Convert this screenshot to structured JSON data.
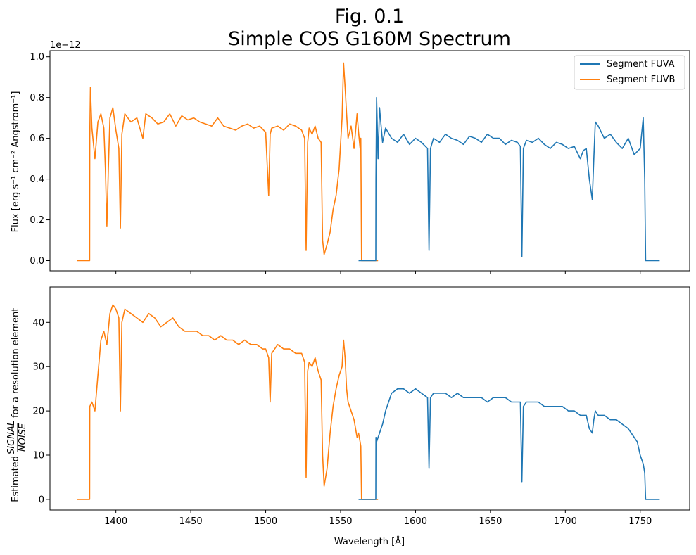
{
  "figure": {
    "title_line1": "Fig. 0.1",
    "title_line2": "Simple COS G160M Spectrum",
    "xlabel": "Wavelength [Å]",
    "colors": {
      "FUVA": "#1f77b4",
      "FUVB": "#ff7f0e"
    }
  },
  "chart_data": [
    {
      "type": "line",
      "name": "flux",
      "ylabel": "Flux [erg s⁻¹ cm⁻² Angstrom⁻¹]",
      "offset_text": "1e−12",
      "xlim": [
        1356,
        1783
      ],
      "ylim": [
        -0.05,
        1.03
      ],
      "xticks": [
        1400,
        1450,
        1500,
        1550,
        1600,
        1650,
        1700,
        1750
      ],
      "yticks": [
        0.0,
        0.2,
        0.4,
        0.6,
        0.8,
        1.0
      ],
      "ytick_labels": [
        "0.0",
        "0.2",
        "0.4",
        "0.6",
        "0.8",
        "1.0"
      ],
      "xtick_labels_visible": false,
      "legend": {
        "location": "upper right",
        "entries": [
          "Segment FUVA",
          "Segment FUVB"
        ]
      },
      "series": [
        {
          "name": "Segment FUVB",
          "color": "#ff7f0e",
          "x": [
            1374,
            1382.5,
            1382.6,
            1383,
            1384,
            1386,
            1388,
            1390,
            1392,
            1393,
            1394,
            1395,
            1396,
            1398,
            1400,
            1402,
            1403,
            1404,
            1406,
            1410,
            1414,
            1418,
            1420,
            1424,
            1428,
            1432,
            1436,
            1440,
            1444,
            1448,
            1452,
            1456,
            1460,
            1464,
            1468,
            1472,
            1476,
            1480,
            1484,
            1488,
            1492,
            1496,
            1500,
            1502,
            1503,
            1504,
            1508,
            1512,
            1516,
            1520,
            1524,
            1526,
            1527,
            1528,
            1529,
            1531,
            1533,
            1535,
            1537,
            1538,
            1539,
            1541,
            1543,
            1545,
            1547,
            1549,
            1551,
            1552,
            1553,
            1554,
            1555,
            1557,
            1559,
            1561,
            1562,
            1563,
            1563.5,
            1564,
            1575
          ],
          "y": [
            0.0,
            0.0,
            0.6,
            0.85,
            0.65,
            0.5,
            0.68,
            0.72,
            0.65,
            0.45,
            0.17,
            0.45,
            0.7,
            0.75,
            0.64,
            0.55,
            0.16,
            0.62,
            0.72,
            0.68,
            0.7,
            0.6,
            0.72,
            0.7,
            0.67,
            0.68,
            0.72,
            0.66,
            0.71,
            0.69,
            0.7,
            0.68,
            0.67,
            0.66,
            0.7,
            0.66,
            0.65,
            0.64,
            0.66,
            0.67,
            0.65,
            0.66,
            0.63,
            0.32,
            0.62,
            0.65,
            0.66,
            0.64,
            0.67,
            0.66,
            0.64,
            0.6,
            0.05,
            0.58,
            0.65,
            0.62,
            0.66,
            0.6,
            0.58,
            0.1,
            0.03,
            0.08,
            0.14,
            0.25,
            0.32,
            0.45,
            0.7,
            0.97,
            0.85,
            0.72,
            0.6,
            0.66,
            0.55,
            0.72,
            0.63,
            0.55,
            0.6,
            0.0,
            0.0
          ]
        },
        {
          "name": "Segment FUVA",
          "color": "#1f77b4",
          "x": [
            1562,
            1573.5,
            1573.6,
            1574,
            1575,
            1576,
            1578,
            1580,
            1584,
            1588,
            1592,
            1596,
            1600,
            1604,
            1608,
            1609,
            1610,
            1612,
            1616,
            1620,
            1624,
            1628,
            1632,
            1636,
            1640,
            1644,
            1648,
            1652,
            1656,
            1660,
            1664,
            1668,
            1670,
            1671,
            1672,
            1674,
            1678,
            1682,
            1686,
            1690,
            1694,
            1698,
            1702,
            1706,
            1710,
            1712,
            1714,
            1716,
            1718,
            1719,
            1720,
            1722,
            1726,
            1730,
            1734,
            1738,
            1742,
            1746,
            1750,
            1752,
            1753,
            1753.6,
            1753.7,
            1763
          ],
          "y": [
            0.0,
            0.0,
            0.4,
            0.8,
            0.5,
            0.75,
            0.58,
            0.65,
            0.6,
            0.58,
            0.62,
            0.57,
            0.6,
            0.58,
            0.55,
            0.05,
            0.55,
            0.6,
            0.58,
            0.62,
            0.6,
            0.59,
            0.57,
            0.61,
            0.6,
            0.58,
            0.62,
            0.6,
            0.6,
            0.57,
            0.59,
            0.58,
            0.56,
            0.02,
            0.55,
            0.59,
            0.58,
            0.6,
            0.57,
            0.55,
            0.58,
            0.57,
            0.55,
            0.56,
            0.5,
            0.54,
            0.55,
            0.4,
            0.3,
            0.5,
            0.68,
            0.66,
            0.6,
            0.62,
            0.58,
            0.55,
            0.6,
            0.52,
            0.55,
            0.7,
            0.4,
            0.0,
            0.0,
            0.0
          ]
        }
      ]
    },
    {
      "type": "line",
      "name": "snr",
      "ylabel_prefix": "Estimated",
      "ylabel_frac_numerator": "SIGNAL",
      "ylabel_frac_denominator": "NOISE",
      "ylabel_suffix": "for a resolution element",
      "xlim": [
        1356,
        1783
      ],
      "ylim": [
        -2.4,
        48
      ],
      "xticks": [
        1400,
        1450,
        1500,
        1550,
        1600,
        1650,
        1700,
        1750
      ],
      "xtick_labels": [
        "1400",
        "1450",
        "1500",
        "1550",
        "1600",
        "1650",
        "1700",
        "1750"
      ],
      "yticks": [
        0,
        10,
        20,
        30,
        40
      ],
      "ytick_labels": [
        "0",
        "10",
        "20",
        "30",
        "40"
      ],
      "series": [
        {
          "name": "Segment FUVB",
          "color": "#ff7f0e",
          "x": [
            1374,
            1382.5,
            1382.6,
            1384,
            1386,
            1388,
            1390,
            1392,
            1394,
            1396,
            1398,
            1400,
            1402,
            1403,
            1404,
            1406,
            1410,
            1414,
            1418,
            1422,
            1426,
            1430,
            1434,
            1438,
            1442,
            1446,
            1450,
            1454,
            1458,
            1462,
            1466,
            1470,
            1474,
            1478,
            1482,
            1486,
            1490,
            1494,
            1498,
            1500,
            1502,
            1503,
            1504,
            1508,
            1512,
            1516,
            1520,
            1524,
            1526,
            1527,
            1528,
            1529,
            1531,
            1533,
            1535,
            1537,
            1538,
            1539,
            1541,
            1543,
            1545,
            1547,
            1549,
            1551,
            1552,
            1553,
            1554,
            1555,
            1557,
            1559,
            1561,
            1562,
            1563,
            1563.5,
            1564,
            1575
          ],
          "y": [
            0.0,
            0.0,
            21,
            22,
            20,
            28,
            36,
            38,
            35,
            42,
            44,
            43,
            41,
            20,
            40,
            43,
            42,
            41,
            40,
            42,
            41,
            39,
            40,
            41,
            39,
            38,
            38,
            38,
            37,
            37,
            36,
            37,
            36,
            36,
            35,
            36,
            35,
            35,
            34,
            34,
            32,
            22,
            33,
            35,
            34,
            34,
            33,
            33,
            31,
            5,
            29,
            31,
            30,
            32,
            29,
            27,
            10,
            3,
            7,
            15,
            21,
            25,
            28,
            30,
            36,
            32,
            25,
            22,
            20,
            18,
            14,
            15,
            13,
            12,
            0.0,
            0.0
          ]
        },
        {
          "name": "Segment FUVA",
          "color": "#1f77b4",
          "x": [
            1562,
            1573.5,
            1573.6,
            1574,
            1576,
            1578,
            1580,
            1584,
            1588,
            1592,
            1596,
            1600,
            1604,
            1608,
            1609,
            1610,
            1612,
            1616,
            1620,
            1624,
            1628,
            1632,
            1636,
            1640,
            1644,
            1648,
            1652,
            1656,
            1660,
            1664,
            1668,
            1670,
            1671,
            1672,
            1674,
            1678,
            1682,
            1686,
            1690,
            1694,
            1698,
            1702,
            1706,
            1710,
            1714,
            1716,
            1718,
            1719,
            1720,
            1722,
            1726,
            1730,
            1734,
            1738,
            1742,
            1746,
            1748,
            1750,
            1752,
            1753,
            1753.6,
            1753.7,
            1763
          ],
          "y": [
            0.0,
            0.0,
            14,
            13,
            15,
            17,
            20,
            24,
            25,
            25,
            24,
            25,
            24,
            23,
            7,
            23,
            24,
            24,
            24,
            23,
            24,
            23,
            23,
            23,
            23,
            22,
            23,
            23,
            23,
            22,
            22,
            22,
            4,
            21,
            22,
            22,
            22,
            21,
            21,
            21,
            21,
            20,
            20,
            19,
            19,
            16,
            15,
            18,
            20,
            19,
            19,
            18,
            18,
            17,
            16,
            14,
            13,
            10,
            8,
            6,
            0.0,
            0.0,
            0.0
          ]
        }
      ]
    }
  ]
}
